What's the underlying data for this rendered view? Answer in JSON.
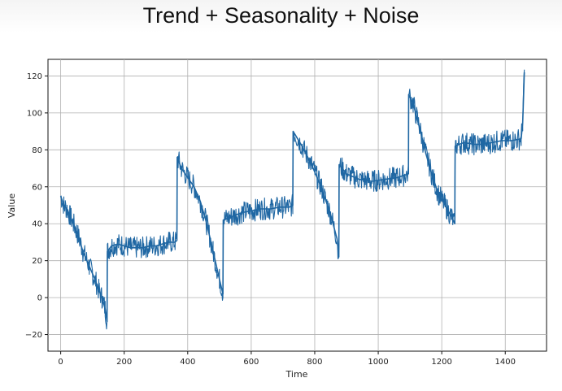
{
  "slide": {
    "title": "Trend + Seasonality + Noise"
  },
  "chart_data": {
    "type": "line",
    "title": "",
    "xlabel": "Time",
    "ylabel": "Value",
    "xlim": [
      -40,
      1530
    ],
    "ylim": [
      -29,
      129
    ],
    "xticks": [
      0,
      200,
      400,
      600,
      800,
      1000,
      1200,
      1400
    ],
    "yticks": [
      -20,
      0,
      20,
      40,
      60,
      80,
      100,
      120
    ],
    "ytick_labels": [
      "−20",
      "0",
      "20",
      "40",
      "60",
      "80",
      "100",
      "120"
    ],
    "grid": true,
    "line_color": "#1f67a3",
    "series": [
      {
        "x": [
          0,
          10,
          20,
          30,
          40,
          50,
          60,
          70,
          80,
          90,
          100,
          110,
          120,
          130,
          140,
          146,
          147,
          160,
          180,
          200,
          220,
          240,
          260,
          280,
          300,
          320,
          340,
          360,
          366,
          367,
          380,
          400,
          420,
          440,
          460,
          480,
          500,
          511,
          512,
          540,
          570,
          600,
          630,
          660,
          690,
          720,
          731,
          732,
          760,
          790,
          820,
          850,
          870,
          876,
          877,
          900,
          940,
          980,
          1020,
          1060,
          1095,
          1096,
          1110,
          1130,
          1150,
          1170,
          1190,
          1210,
          1230,
          1241,
          1242,
          1270,
          1300,
          1330,
          1360,
          1390,
          1420,
          1450,
          1455,
          1460
        ],
        "y": [
          55,
          50,
          48,
          44,
          40,
          36,
          31,
          25,
          21,
          17,
          13,
          9,
          4,
          0,
          -6,
          -13,
          25,
          28,
          29,
          28,
          27,
          27,
          27,
          28,
          28,
          29,
          30,
          30,
          31,
          76,
          70,
          65,
          60,
          52,
          40,
          25,
          10,
          2,
          42,
          44,
          46,
          47,
          48,
          48,
          49,
          49,
          50,
          90,
          82,
          72,
          60,
          45,
          32,
          22,
          72,
          67,
          64,
          63,
          64,
          65,
          67,
          110,
          105,
          92,
          78,
          66,
          56,
          50,
          44,
          40,
          82,
          84,
          83,
          83,
          84,
          85,
          85,
          86,
          95,
          122
        ]
      }
    ]
  }
}
